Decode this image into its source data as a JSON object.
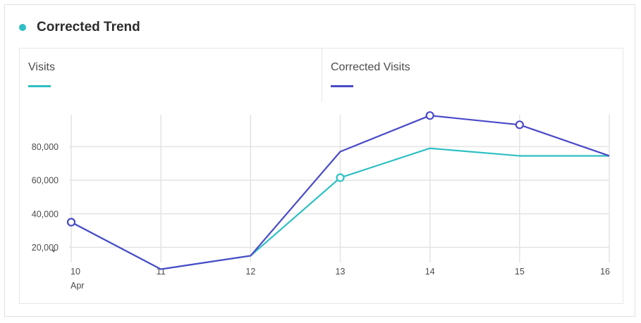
{
  "title": "Corrected Trend",
  "colors": {
    "visits": "#2ebfc4",
    "corrected": "#4a4ac8",
    "title_dot": "#2ebfc4",
    "grid": "#e3e3e3"
  },
  "legend": [
    {
      "label": "Visits",
      "color": "#2ebfc4"
    },
    {
      "label": "Corrected Visits",
      "color": "#4a4ac8"
    }
  ],
  "chart_data": {
    "type": "line",
    "x": [
      "10",
      "11",
      "12",
      "13",
      "14",
      "15",
      "16"
    ],
    "x_sublabels": [
      "Apr",
      "",
      "",
      "",
      "",
      "",
      ""
    ],
    "y_ticks": [
      20000,
      40000,
      60000,
      80000
    ],
    "y_tick_labels": [
      "20,000",
      "40,000",
      "60,000",
      "80,000"
    ],
    "ylim": [
      11000,
      99000
    ],
    "grid": true,
    "series": [
      {
        "name": "Visits",
        "values": [
          35000,
          7000,
          15000,
          61500,
          79000,
          74500,
          74500
        ],
        "markers": [
          0,
          3
        ]
      },
      {
        "name": "Corrected Visits",
        "values": [
          35000,
          7000,
          15000,
          77000,
          98500,
          93000,
          74500
        ],
        "markers": [
          0,
          4,
          5
        ]
      }
    ]
  }
}
